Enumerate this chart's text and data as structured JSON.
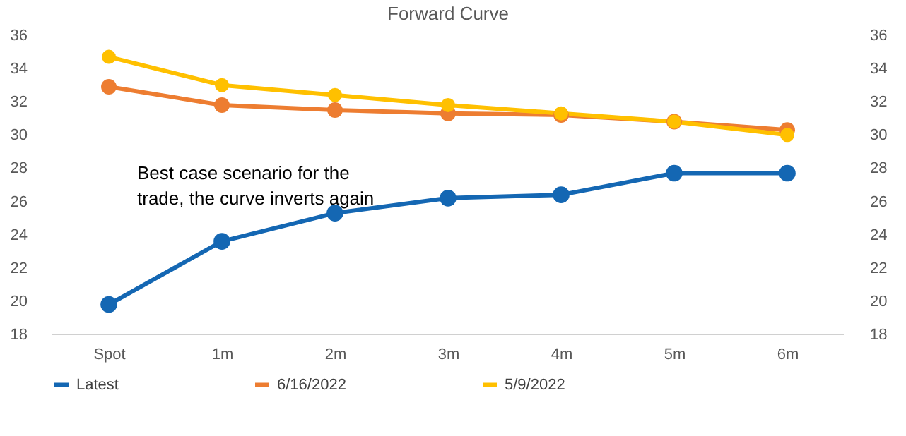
{
  "chart_data": {
    "type": "line",
    "title": "Forward Curve",
    "categories": [
      "Spot",
      "1m",
      "2m",
      "3m",
      "4m",
      "5m",
      "6m"
    ],
    "series": [
      {
        "name": "Latest",
        "color": "#1467b3",
        "values": [
          19.8,
          23.6,
          25.3,
          26.2,
          26.4,
          27.7,
          27.7
        ]
      },
      {
        "name": "6/16/2022",
        "color": "#ed7d31",
        "values": [
          32.9,
          31.8,
          31.5,
          31.3,
          31.2,
          30.8,
          30.3
        ]
      },
      {
        "name": "5/9/2022",
        "color": "#ffc000",
        "values": [
          34.7,
          33.0,
          32.4,
          31.8,
          31.3,
          30.8,
          30.0
        ]
      }
    ],
    "ylim": [
      18,
      36
    ],
    "yticks": [
      18,
      20,
      22,
      24,
      26,
      28,
      30,
      32,
      34,
      36
    ],
    "y2lim": [
      18,
      36
    ],
    "y2ticks": [
      18,
      20,
      22,
      24,
      26,
      28,
      30,
      32,
      34,
      36
    ],
    "annotations": [
      "Best case scenario for the trade, the curve inverts again"
    ],
    "marker": "circle",
    "line_style": "solid",
    "legend": "bottom"
  }
}
